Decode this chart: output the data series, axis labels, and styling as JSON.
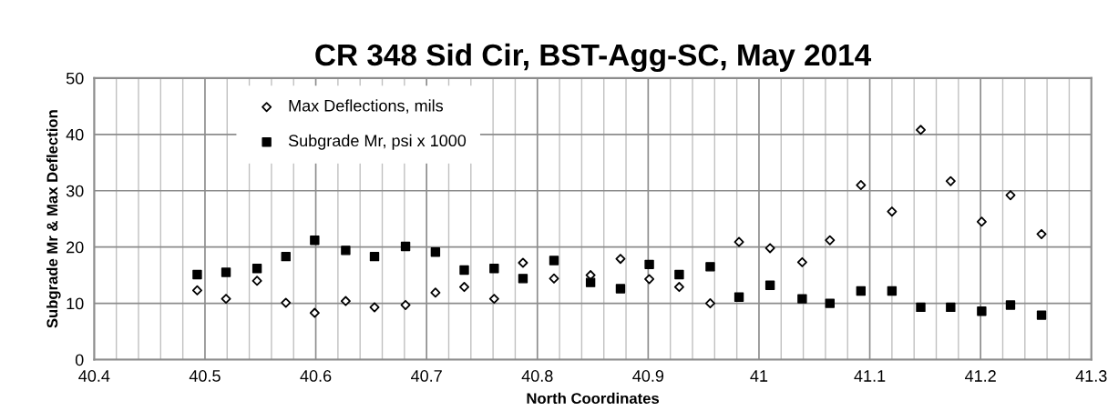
{
  "chart_data": {
    "type": "scatter",
    "title": "CR 348 Sid Cir, BST-Agg-SC, May 2014",
    "xlabel": "North Coordinates",
    "ylabel": "Subgrade Mr & Max Deflection",
    "x": [
      40.493,
      40.519,
      40.547,
      40.573,
      40.599,
      40.627,
      40.653,
      40.681,
      40.708,
      40.734,
      40.761,
      40.787,
      40.815,
      40.848,
      40.875,
      40.901,
      40.928,
      40.956,
      40.982,
      41.01,
      41.039,
      41.064,
      41.092,
      41.12,
      41.146,
      41.173,
      41.201,
      41.227,
      41.255
    ],
    "series": [
      {
        "name": "Max Deflections, mils",
        "color": "#000000",
        "marker": "diamond",
        "values": [
          12.3,
          10.8,
          14.0,
          10.1,
          8.3,
          10.4,
          9.3,
          9.7,
          11.9,
          12.9,
          10.8,
          17.2,
          14.4,
          15.0,
          17.9,
          14.3,
          12.9,
          10.0,
          20.9,
          19.8,
          17.3,
          21.2,
          31.0,
          26.3,
          40.8,
          31.7,
          24.5,
          29.2,
          22.3
        ]
      },
      {
        "name": "Subgrade Mr, psi x 1000",
        "color": "#000000",
        "marker": "square",
        "values": [
          15.1,
          15.5,
          16.2,
          18.3,
          21.2,
          19.4,
          18.3,
          20.1,
          19.1,
          15.9,
          16.2,
          14.4,
          17.6,
          13.7,
          12.6,
          16.9,
          15.1,
          16.5,
          11.1,
          13.2,
          10.8,
          10.0,
          12.2,
          12.2,
          9.3,
          9.3,
          8.6,
          9.7,
          7.9
        ]
      }
    ],
    "xlim": [
      40.4,
      41.3
    ],
    "xticks": [
      40.4,
      {
        "value": 40.42,
        "label": null
      },
      {
        "value": 40.44,
        "label": null
      },
      {
        "value": 40.46,
        "label": null
      },
      {
        "value": 40.48,
        "label": null
      },
      40.5,
      {
        "value": 40.52,
        "label": null
      },
      {
        "value": 40.54,
        "label": null
      },
      {
        "value": 40.56,
        "label": null
      },
      {
        "value": 40.58,
        "label": null
      },
      40.6,
      {
        "value": 40.62,
        "label": null
      },
      {
        "value": 40.64,
        "label": null
      },
      {
        "value": 40.66,
        "label": null
      },
      {
        "value": 40.68,
        "label": null
      },
      40.7,
      {
        "value": 40.72,
        "label": null
      },
      {
        "value": 40.74,
        "label": null
      },
      {
        "value": 40.76,
        "label": null
      },
      {
        "value": 40.78,
        "label": null
      },
      40.8,
      {
        "value": 40.82,
        "label": null
      },
      {
        "value": 40.84,
        "label": null
      },
      {
        "value": 40.86,
        "label": null
      },
      {
        "value": 40.88,
        "label": null
      },
      40.9,
      {
        "value": 40.92,
        "label": null
      },
      {
        "value": 40.94,
        "label": null
      },
      {
        "value": 40.96,
        "label": null
      },
      {
        "value": 40.98,
        "label": null
      },
      41,
      {
        "value": 41.02,
        "label": null
      },
      {
        "value": 41.04,
        "label": null
      },
      {
        "value": 41.06,
        "label": null
      },
      {
        "value": 41.08,
        "label": null
      },
      41.1,
      {
        "value": 41.12,
        "label": null
      },
      {
        "value": 41.14,
        "label": null
      },
      {
        "value": 41.16,
        "label": null
      },
      {
        "value": 41.18,
        "label": null
      },
      41.2,
      {
        "value": 41.22,
        "label": null
      },
      {
        "value": 41.24,
        "label": null
      },
      {
        "value": 41.26,
        "label": null
      },
      {
        "value": 41.28,
        "label": null
      },
      41.3
    ],
    "ylim": [
      0,
      50
    ],
    "yticks": [
      0,
      10,
      20,
      30,
      40,
      50
    ],
    "grid": true,
    "legend": "top left"
  }
}
